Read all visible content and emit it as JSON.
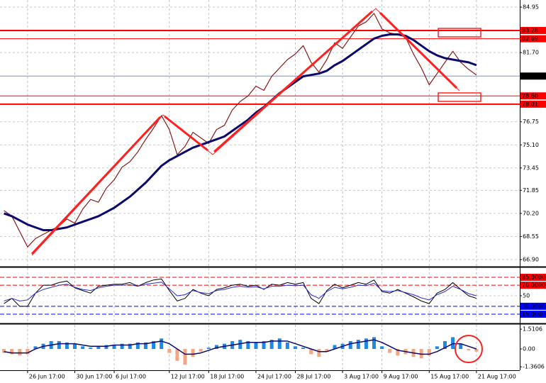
{
  "chart_data": [
    {
      "type": "line",
      "categories": [
        null,
        null,
        null,
        "26 Jun 17:00",
        null,
        null,
        null,
        null,
        null,
        "30 Jun 17:00",
        null,
        null,
        null,
        null,
        "6 Jul 17:00",
        null,
        null,
        null,
        null,
        null,
        null,
        "12 Jul 17:00",
        null,
        null,
        null,
        null,
        "18 Jul 17:00",
        null,
        null,
        null,
        null,
        null,
        "24 Jul 17:00",
        null,
        null,
        null,
        null,
        "28 Jul 17:00",
        null,
        null,
        null,
        null,
        null,
        "3 Aug 17:00",
        null,
        null,
        null,
        null,
        "9 Aug 17:00",
        null,
        null,
        null,
        null,
        null,
        "15 Aug 17:00",
        null,
        null,
        null,
        null,
        null,
        "21 Aug 17:00",
        null,
        null,
        null,
        null,
        null
      ],
      "series": [
        {
          "color": "#8b1a1a",
          "width": 1.2,
          "values": [
            70.4,
            70.0,
            68.9,
            67.8,
            68.4,
            68.7,
            69.0,
            69.3,
            69.8,
            69.5,
            70.5,
            71.2,
            71.0,
            72.0,
            72.6,
            73.5,
            73.9,
            74.6,
            75.5,
            76.3,
            77.2,
            76.2,
            74.4,
            75.0,
            76.0,
            75.6,
            75.2,
            76.2,
            76.5,
            77.6,
            78.2,
            78.6,
            79.3,
            79.0,
            80.0,
            80.6,
            81.2,
            81.6,
            82.2,
            81.0,
            80.3,
            81.2,
            82.4,
            82.0,
            82.8,
            83.6,
            83.9,
            84.5,
            83.4,
            83.1,
            83.0,
            82.8,
            81.6,
            80.6,
            79.4,
            80.2,
            81.0,
            81.8,
            81.0,
            80.5,
            80.1,
            null,
            null,
            null,
            null,
            null
          ]
        },
        {
          "color": "#0a0a6e",
          "width": 3,
          "values": [
            70.2,
            70.0,
            69.7,
            69.4,
            69.2,
            69.0,
            69.0,
            69.1,
            69.2,
            69.4,
            69.6,
            69.8,
            70.0,
            70.3,
            70.6,
            71.0,
            71.4,
            71.9,
            72.4,
            73.0,
            73.6,
            74.0,
            74.3,
            74.6,
            74.9,
            75.1,
            75.3,
            75.5,
            75.7,
            76.1,
            76.5,
            76.9,
            77.4,
            77.8,
            78.3,
            78.8,
            79.2,
            79.6,
            80.0,
            80.1,
            80.2,
            80.4,
            80.8,
            81.1,
            81.5,
            81.9,
            82.3,
            82.7,
            82.9,
            83.0,
            83.0,
            82.9,
            82.6,
            82.2,
            81.8,
            81.5,
            81.3,
            81.2,
            81.1,
            81.0,
            80.8,
            null,
            null,
            null,
            null,
            null
          ]
        }
      ],
      "ylim": [
        66.44,
        85.46
      ],
      "yticks": [
        84.95,
        {
          "value": 81.7,
          "label": "81.70"
        },
        76.75,
        {
          "value": 75.1,
          "label": "75.10"
        },
        73.45,
        71.85,
        {
          "value": 70.2,
          "label": "70.20"
        },
        68.55,
        {
          "value": 66.9,
          "label": "66.90"
        }
      ],
      "levels": [
        {
          "value": 83.28,
          "label": "83.28",
          "color": "#ff0000",
          "width": 2
        },
        {
          "value": 82.69,
          "label": "82.69",
          "color": "#ff0000",
          "width": 1
        },
        {
          "value": 80.02,
          "label": "80.02",
          "color": "#6495ed",
          "width": 1,
          "label_color": "#000000"
        },
        {
          "value": 78.6,
          "label": "78.60",
          "color": "#ff0000",
          "width": 1
        },
        {
          "value": 78.01,
          "label": "78.01",
          "color": "#ff0000",
          "width": 2
        }
      ],
      "grid": true
    },
    {
      "type": "line",
      "series": [
        {
          "color": "#000000",
          "width": 1,
          "values": [
            35,
            45,
            30,
            30,
            55,
            70,
            70,
            75,
            78,
            65,
            60,
            55,
            68,
            70,
            72,
            72,
            75,
            68,
            75,
            80,
            82,
            60,
            40,
            45,
            62,
            55,
            50,
            62,
            65,
            70,
            72,
            68,
            70,
            62,
            72,
            70,
            75,
            72,
            75,
            45,
            35,
            60,
            72,
            65,
            70,
            75,
            72,
            80,
            58,
            55,
            62,
            55,
            48,
            40,
            35,
            55,
            62,
            75,
            62,
            50,
            45,
            null,
            null,
            null,
            null,
            null
          ]
        },
        {
          "color": "#3030d0",
          "width": 1,
          "values": [
            40,
            45,
            40,
            42,
            55,
            62,
            66,
            70,
            72,
            66,
            62,
            60,
            65,
            68,
            70,
            70,
            71,
            68,
            72,
            74,
            76,
            63,
            50,
            52,
            60,
            56,
            54,
            60,
            62,
            66,
            68,
            66,
            67,
            63,
            68,
            68,
            70,
            69,
            70,
            52,
            45,
            58,
            66,
            63,
            66,
            70,
            69,
            74,
            60,
            58,
            60,
            56,
            52,
            46,
            42,
            52,
            58,
            68,
            62,
            54,
            50,
            null,
            null,
            null,
            null,
            null
          ]
        }
      ],
      "ylim": [
        -1.15,
        102.5
      ],
      "yticks": [
        50
      ],
      "levels": [
        {
          "value": 85,
          "label": "85.0000",
          "color": "#ff0000",
          "width": 1
        },
        {
          "value": 70,
          "label": "70.0000",
          "color": "#ff0000",
          "width": 1
        },
        {
          "value": 30,
          "label": "30.0000",
          "color": "#0000ff",
          "width": 1
        },
        {
          "value": 15,
          "label": "15.0000",
          "color": "#0000ff",
          "width": 1
        }
      ],
      "grid": true
    },
    {
      "type": "bar",
      "series": [
        {
          "type": "bar",
          "color": "#1e88e5",
          "negative_color": "#f4a582",
          "values": [
            -0.3,
            -0.4,
            -0.5,
            -0.4,
            0.2,
            0.4,
            0.6,
            0.6,
            0.5,
            0.4,
            0.2,
            0.1,
            0.2,
            0.3,
            0.3,
            0.4,
            0.4,
            0.5,
            0.5,
            0.6,
            0.8,
            -0.3,
            -0.9,
            -1.2,
            -0.6,
            -0.2,
            0.1,
            0.3,
            0.4,
            0.6,
            0.7,
            0.6,
            0.5,
            0.6,
            0.7,
            0.8,
            0.5,
            0.2,
            0.1,
            -0.4,
            -0.6,
            -0.2,
            0.3,
            0.4,
            0.6,
            0.7,
            0.8,
            0.9,
            0.2,
            -0.3,
            -0.5,
            -0.4,
            -0.6,
            -0.7,
            -0.5,
            0.2,
            0.6,
            0.9,
            0.4,
            -0.1,
            -0.2,
            null,
            null,
            null,
            null,
            null
          ]
        },
        {
          "type": "line",
          "color": "#0a0a6e",
          "width": 1.5,
          "values": [
            -0.2,
            -0.3,
            -0.3,
            -0.3,
            0,
            0.2,
            0.3,
            0.4,
            0.4,
            0.4,
            0.3,
            0.2,
            0.2,
            0.2,
            0.3,
            0.3,
            0.3,
            0.4,
            0.4,
            0.5,
            0.6,
            0.4,
            0,
            -0.4,
            -0.4,
            -0.3,
            -0.1,
            0.1,
            0.2,
            0.3,
            0.4,
            0.5,
            0.5,
            0.5,
            0.6,
            0.6,
            0.6,
            0.4,
            0.2,
            0,
            -0.2,
            -0.2,
            0,
            0.2,
            0.4,
            0.5,
            0.6,
            0.7,
            0.5,
            0.2,
            -0.1,
            -0.2,
            -0.3,
            -0.4,
            -0.4,
            -0.2,
            0.1,
            0.4,
            0.4,
            0.2,
            0,
            null,
            null,
            null,
            null,
            null
          ]
        }
      ],
      "ylim": [
        -1.62,
        1.84
      ],
      "yticks": [
        1.5106,
        {
          "value": 0,
          "label": "0.00"
        },
        -1.3606
      ],
      "grid": false
    }
  ]
}
